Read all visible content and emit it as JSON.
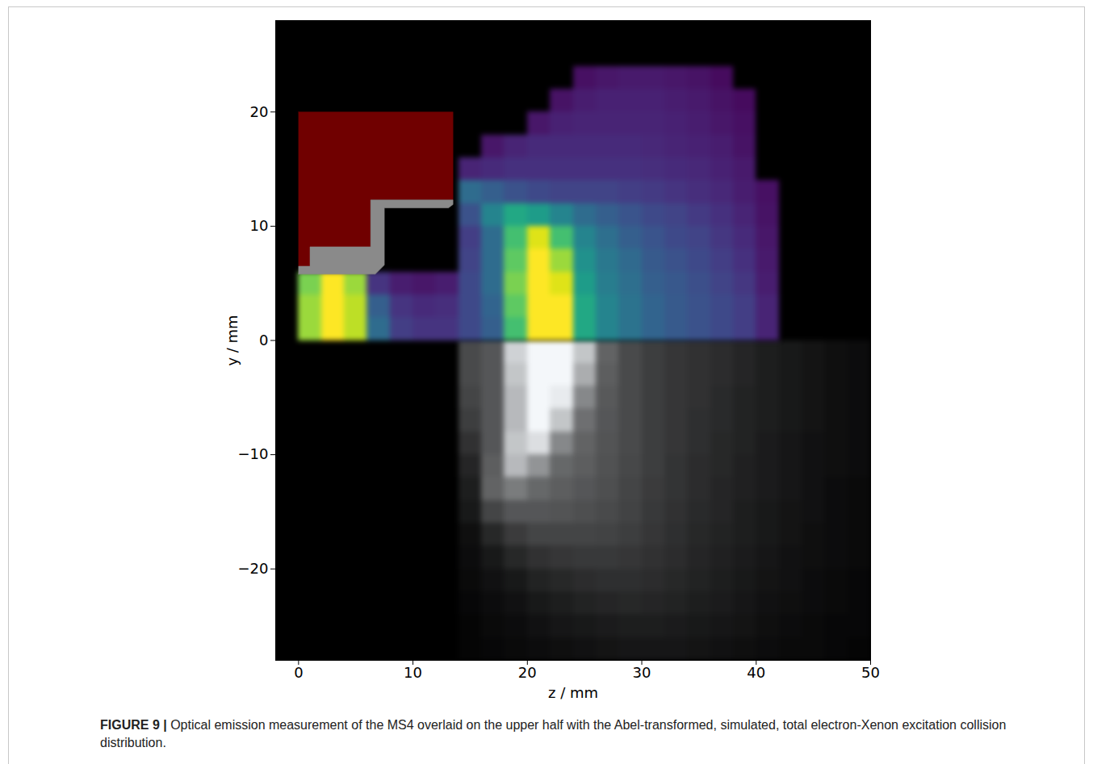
{
  "chart_data": {
    "type": "heatmap",
    "caption": "FIGURE 9 | Optical emission measurement of the MS4 overlaid on the upper half with the Abel-transformed, simulated, total electron-Xenon excitation collision distribution.",
    "x_label": "z / mm",
    "y_label": "y / mm",
    "xlim": [
      -2,
      50
    ],
    "ylim": [
      -28,
      28
    ],
    "xticks": [
      0,
      10,
      20,
      30,
      40,
      50
    ],
    "yticks": [
      -20,
      -10,
      0,
      10,
      20
    ],
    "simulation": {
      "color": "viridis",
      "z_edges": [
        0,
        2,
        4,
        6,
        8,
        10,
        12,
        14,
        16,
        18,
        20,
        22,
        24,
        26,
        28,
        30,
        32,
        34,
        36,
        38,
        40,
        42
      ],
      "y_edges": [
        0,
        2,
        4,
        6,
        8,
        10,
        12,
        14,
        16,
        18,
        20,
        22,
        24
      ],
      "values": [
        [
          0.85,
          1,
          0.9,
          0.35,
          0.18,
          0.15,
          0.15,
          0.22,
          0.3,
          0.7,
          1,
          1,
          0.6,
          0.45,
          0.38,
          0.32,
          0.28,
          0.25,
          0.22,
          0.18,
          0.1
        ],
        [
          0.85,
          1,
          0.9,
          0.3,
          0.15,
          0.12,
          0.13,
          0.22,
          0.32,
          0.75,
          1,
          1,
          0.6,
          0.45,
          0.38,
          0.32,
          0.28,
          0.25,
          0.22,
          0.18,
          0.1
        ],
        [
          0.8,
          1,
          0.85,
          0.15,
          0.08,
          0.06,
          0.08,
          0.22,
          0.35,
          0.8,
          1,
          0.95,
          0.55,
          0.42,
          0.36,
          0.3,
          0.27,
          0.24,
          0.2,
          0.16,
          0.08
        ],
        [
          null,
          null,
          null,
          null,
          null,
          null,
          null,
          0.2,
          0.35,
          0.75,
          1,
          0.85,
          0.5,
          0.4,
          0.34,
          0.28,
          0.25,
          0.22,
          0.18,
          0.14,
          0.07
        ],
        [
          null,
          null,
          null,
          null,
          null,
          null,
          null,
          0.18,
          0.35,
          0.7,
          0.95,
          0.7,
          0.45,
          0.36,
          0.3,
          0.26,
          0.22,
          0.2,
          0.16,
          0.12,
          0.06
        ],
        [
          null,
          null,
          null,
          null,
          null,
          null,
          null,
          0.25,
          0.45,
          0.6,
          0.55,
          0.45,
          0.35,
          0.3,
          0.26,
          0.22,
          0.2,
          0.17,
          0.14,
          0.1,
          0.05
        ],
        [
          null,
          null,
          null,
          null,
          null,
          null,
          null,
          0.35,
          0.3,
          0.25,
          0.22,
          0.2,
          0.2,
          0.2,
          0.18,
          0.17,
          0.15,
          0.13,
          0.11,
          0.08,
          0.04
        ],
        [
          null,
          null,
          null,
          null,
          null,
          null,
          null,
          0.1,
          0.12,
          0.14,
          0.14,
          0.14,
          0.14,
          0.14,
          0.14,
          0.13,
          0.12,
          0.11,
          0.09,
          0.07,
          null
        ],
        [
          null,
          null,
          null,
          null,
          null,
          null,
          null,
          null,
          0.06,
          0.1,
          0.12,
          0.12,
          0.12,
          0.12,
          0.12,
          0.11,
          0.1,
          0.09,
          0.08,
          0.05,
          null
        ],
        [
          null,
          null,
          null,
          null,
          null,
          null,
          null,
          null,
          null,
          null,
          0.06,
          0.09,
          0.1,
          0.1,
          0.1,
          0.1,
          0.09,
          0.08,
          0.06,
          0.04,
          null
        ],
        [
          null,
          null,
          null,
          null,
          null,
          null,
          null,
          null,
          null,
          null,
          null,
          0.05,
          0.08,
          0.09,
          0.09,
          0.09,
          0.08,
          0.07,
          0.05,
          0.03,
          null
        ],
        [
          null,
          null,
          null,
          null,
          null,
          null,
          null,
          null,
          null,
          null,
          null,
          null,
          0.04,
          0.06,
          0.07,
          0.07,
          0.06,
          0.05,
          0.03,
          null,
          null
        ]
      ]
    },
    "emission": {
      "color": "#f4f7fa",
      "z_edges": [
        14,
        16,
        18,
        20,
        22,
        24,
        26,
        28,
        30,
        32,
        34,
        36,
        38,
        40,
        42,
        44,
        46,
        48,
        50
      ],
      "y_edges": [
        -28,
        -26,
        -24,
        -22,
        -20,
        -18,
        -16,
        -14,
        -12,
        -10,
        -8,
        -6,
        -4,
        -2,
        0
      ],
      "values": [
        [
          0.02,
          0.03,
          0.04,
          0.05,
          0.06,
          0.07,
          0.08,
          0.09,
          0.09,
          0.09,
          0.08,
          0.07,
          0.06,
          0.05,
          0.04,
          0.04,
          0.03,
          0.02
        ],
        [
          0.02,
          0.04,
          0.05,
          0.07,
          0.09,
          0.1,
          0.11,
          0.12,
          0.12,
          0.11,
          0.1,
          0.09,
          0.08,
          0.06,
          0.05,
          0.04,
          0.03,
          0.03
        ],
        [
          0.03,
          0.05,
          0.07,
          0.1,
          0.12,
          0.14,
          0.15,
          0.16,
          0.15,
          0.14,
          0.12,
          0.11,
          0.09,
          0.07,
          0.06,
          0.05,
          0.04,
          0.03
        ],
        [
          0.04,
          0.07,
          0.1,
          0.14,
          0.16,
          0.18,
          0.19,
          0.19,
          0.18,
          0.16,
          0.14,
          0.12,
          0.1,
          0.08,
          0.07,
          0.05,
          0.04,
          0.03
        ],
        [
          0.05,
          0.1,
          0.16,
          0.2,
          0.22,
          0.23,
          0.23,
          0.22,
          0.2,
          0.18,
          0.15,
          0.13,
          0.11,
          0.09,
          0.07,
          0.06,
          0.05,
          0.04
        ],
        [
          0.06,
          0.16,
          0.24,
          0.28,
          0.28,
          0.28,
          0.27,
          0.25,
          0.22,
          0.19,
          0.16,
          0.14,
          0.12,
          0.1,
          0.08,
          0.06,
          0.05,
          0.04
        ],
        [
          0.1,
          0.28,
          0.35,
          0.35,
          0.34,
          0.32,
          0.3,
          0.27,
          0.23,
          0.2,
          0.17,
          0.15,
          0.12,
          0.1,
          0.08,
          0.07,
          0.05,
          0.04
        ],
        [
          0.12,
          0.4,
          0.5,
          0.42,
          0.38,
          0.35,
          0.32,
          0.28,
          0.24,
          0.21,
          0.18,
          0.15,
          0.13,
          0.11,
          0.09,
          0.07,
          0.05,
          0.04
        ],
        [
          0.15,
          0.38,
          0.75,
          0.6,
          0.42,
          0.38,
          0.33,
          0.29,
          0.25,
          0.21,
          0.18,
          0.16,
          0.13,
          0.11,
          0.09,
          0.07,
          0.06,
          0.05
        ],
        [
          0.2,
          0.35,
          0.8,
          0.9,
          0.55,
          0.4,
          0.34,
          0.3,
          0.25,
          0.22,
          0.19,
          0.16,
          0.14,
          0.11,
          0.09,
          0.07,
          0.06,
          0.05
        ],
        [
          0.25,
          0.35,
          0.75,
          1,
          0.8,
          0.45,
          0.35,
          0.3,
          0.25,
          0.22,
          0.19,
          0.17,
          0.14,
          0.12,
          0.1,
          0.08,
          0.06,
          0.05
        ],
        [
          0.28,
          0.35,
          0.75,
          1,
          0.95,
          0.55,
          0.36,
          0.3,
          0.25,
          0.22,
          0.2,
          0.17,
          0.14,
          0.12,
          0.1,
          0.08,
          0.06,
          0.05
        ],
        [
          0.3,
          0.35,
          0.8,
          1,
          1,
          0.7,
          0.38,
          0.3,
          0.25,
          0.22,
          0.2,
          0.18,
          0.15,
          0.12,
          0.1,
          0.08,
          0.06,
          0.05
        ],
        [
          0.3,
          0.35,
          0.85,
          1,
          1,
          0.8,
          0.4,
          0.3,
          0.25,
          0.22,
          0.2,
          0.18,
          0.15,
          0.12,
          0.1,
          0.08,
          0.06,
          0.05
        ]
      ]
    },
    "regions": [
      {
        "color": "#700000",
        "points": [
          [
            0,
            20
          ],
          [
            13.5,
            20
          ],
          [
            13.5,
            12.3
          ],
          [
            6.3,
            12.3
          ],
          [
            6.3,
            8.2
          ],
          [
            1,
            8.2
          ],
          [
            1,
            6.5
          ],
          [
            0,
            6.5
          ],
          [
            0,
            20
          ]
        ]
      },
      {
        "color": "#8a8a8a",
        "points": [
          [
            0,
            5.8
          ],
          [
            6.7,
            5.8
          ],
          [
            7.5,
            6.6
          ],
          [
            7.5,
            11.6
          ],
          [
            13.1,
            11.6
          ],
          [
            13.5,
            11.9
          ],
          [
            13.5,
            12.3
          ],
          [
            6.3,
            12.3
          ],
          [
            6.3,
            8.2
          ],
          [
            1,
            8.2
          ],
          [
            1,
            6.5
          ],
          [
            0,
            6.5
          ],
          [
            0,
            5.8
          ]
        ]
      }
    ]
  }
}
